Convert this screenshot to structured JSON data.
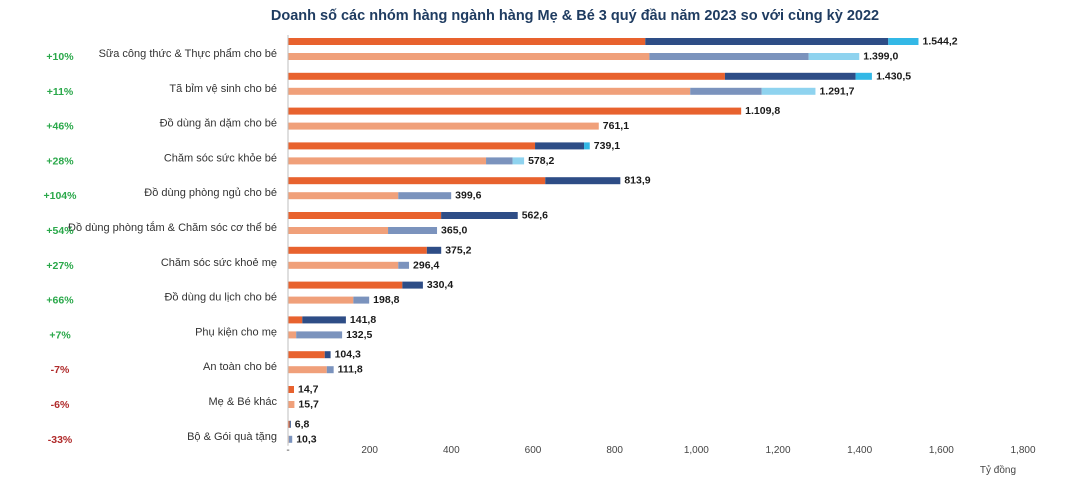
{
  "chart_data": {
    "type": "bar",
    "orientation": "horizontal",
    "stacked": true,
    "title": "Doanh số các nhóm hàng ngành hàng Mẹ & Bé 3 quý đầu năm 2023 so với cùng kỳ 2022",
    "unit_label": "Tỷ đồng",
    "xlim": [
      0,
      1800
    ],
    "x_ticks": [
      "-",
      "200",
      "400",
      "600",
      "800",
      "1,000",
      "1,200",
      "1,400",
      "1,600",
      "1,800"
    ],
    "x_tick_values": [
      0,
      200,
      400,
      600,
      800,
      1000,
      1200,
      1400,
      1600,
      1800
    ],
    "colors": {
      "y2023": [
        "#e8622e",
        "#2e4d86",
        "#33b8e6"
      ],
      "y2022": [
        "#f0a07a",
        "#7b93bd",
        "#8fd3ef"
      ],
      "positive_growth": "#2aa84a",
      "negative_growth": "#b02a2a"
    },
    "categories": [
      "Sữa công thức & Thực phẩm cho bé",
      "Tã  bỉm  vệ sinh cho bé",
      "Đồ dùng ăn dặm cho bé",
      "Chăm sóc sức khỏe bé",
      "Đồ dùng phòng ngủ cho bé",
      "Đồ dùng phòng tắm & Chăm sóc cơ thể bé",
      "Chăm sóc sức khoẻ mẹ",
      "Đồ dùng du lịch cho bé",
      "Phụ kiện cho mẹ",
      "An toàn cho bé",
      "Mẹ & Bé khác",
      "Bộ & Gói quà tặng"
    ],
    "growth": [
      "+10%",
      "+11%",
      "+46%",
      "+28%",
      "+104%",
      "+54%",
      "+27%",
      "+66%",
      "+7%",
      "-7%",
      "-6%",
      "-33%"
    ],
    "series": [
      {
        "name": "2023",
        "totals": [
          1544.2,
          1430.5,
          1109.8,
          739.1,
          813.9,
          562.6,
          375.2,
          330.4,
          141.8,
          104.3,
          14.7,
          6.8
        ],
        "total_labels": [
          "1.544,2",
          "1.430,5",
          "1.109,8",
          "739,1",
          "813,9",
          "562,6",
          "375,2",
          "330,4",
          "141,8",
          "104,3",
          "14,7",
          "6,8"
        ],
        "segments": [
          [
            875,
            595,
            74
          ],
          [
            1070,
            320,
            40
          ],
          [
            1109.8,
            0,
            0
          ],
          [
            605,
            120,
            14
          ],
          [
            630,
            183.9,
            0
          ],
          [
            375,
            187.6,
            0
          ],
          [
            340,
            35.2,
            0
          ],
          [
            280,
            50.4,
            0
          ],
          [
            35,
            106.8,
            0
          ],
          [
            90,
            14.3,
            0
          ],
          [
            14.7,
            0,
            0
          ],
          [
            4,
            2.8,
            0
          ]
        ]
      },
      {
        "name": "2022",
        "totals": [
          1399.0,
          1291.7,
          761.1,
          578.2,
          399.6,
          365.0,
          296.4,
          198.8,
          132.5,
          111.8,
          15.7,
          10.3
        ],
        "total_labels": [
          "1.399,0",
          "1.291,7",
          "761,1",
          "578,2",
          "399,6",
          "365,0",
          "296,4",
          "198,8",
          "132,5",
          "111,8",
          "15,7",
          "10,3"
        ],
        "segments": [
          [
            885,
            390,
            124
          ],
          [
            985,
            175,
            131.7
          ],
          [
            761.1,
            0,
            0
          ],
          [
            485,
            65,
            28.2
          ],
          [
            270,
            129.6,
            0
          ],
          [
            245,
            120,
            0
          ],
          [
            270,
            26.4,
            0
          ],
          [
            160,
            38.8,
            0
          ],
          [
            20,
            112.5,
            0
          ],
          [
            95,
            16.8,
            0
          ],
          [
            15.7,
            0,
            0
          ],
          [
            2,
            8.3,
            0
          ]
        ]
      }
    ]
  }
}
